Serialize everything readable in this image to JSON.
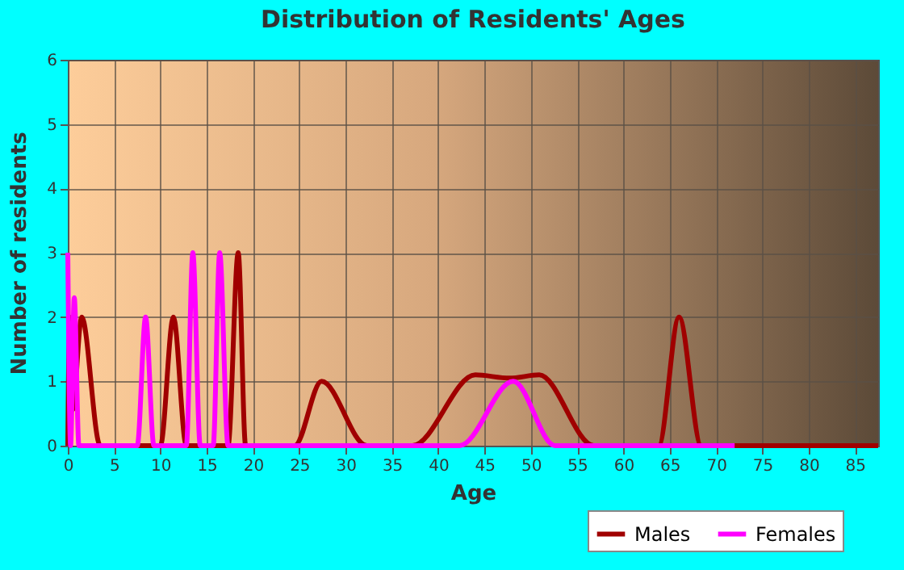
{
  "chart_data": {
    "type": "line",
    "title": "Distribution of Residents' Ages",
    "xlabel": "Age",
    "ylabel": "Number of residents",
    "xlim": [
      0,
      87.5
    ],
    "xticks": [
      0,
      5,
      10,
      15,
      20,
      25,
      30,
      35,
      40,
      45,
      50,
      55,
      60,
      65,
      70,
      75,
      80,
      85
    ],
    "ylim": [
      0,
      6
    ],
    "yticks": [
      0,
      1,
      2,
      3,
      4,
      5,
      6
    ],
    "grid": true,
    "legend": "bottom",
    "marker": "none",
    "line_style": "solid",
    "series": [
      {
        "name": "Males",
        "color": "#a00000",
        "x": [
          0,
          0.2,
          0.5,
          1.5,
          3.5,
          10,
          11.4,
          12.8,
          17.3,
          18.4,
          19.2,
          24.5,
          27.4,
          32.3,
          37.2,
          44,
          47.7,
          50.9,
          56.8,
          63.8,
          66,
          68.4,
          87.5
        ],
        "values": [
          0,
          2,
          0.55,
          2,
          0,
          0,
          2,
          0,
          0,
          3,
          0,
          0,
          1,
          0,
          0,
          1.1,
          1.05,
          1.1,
          0,
          0,
          2,
          0,
          0
        ]
      },
      {
        "name": "Females",
        "color": "#ff00ff",
        "x": [
          0,
          0.3,
          0.7,
          1.2,
          7.5,
          8.4,
          9.3,
          12.8,
          13.5,
          14.3,
          15.7,
          16.4,
          17.3,
          42.3,
          48.1,
          52.6,
          72
        ],
        "values": [
          3,
          0,
          2.3,
          0,
          0,
          2,
          0,
          0,
          3,
          0,
          0,
          3,
          0,
          0,
          1,
          0,
          0
        ]
      }
    ]
  }
}
